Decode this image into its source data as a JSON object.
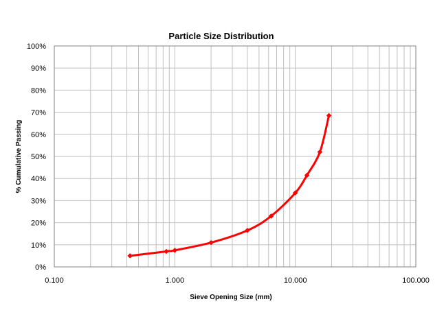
{
  "chart_data": {
    "type": "line",
    "title": "Particle Size Distribution",
    "xlabel": "Sieve Opening Size (mm)",
    "ylabel": "% Cumulative Passing",
    "x_scale": "log",
    "xlim": [
      0.1,
      100
    ],
    "ylim": [
      0,
      100
    ],
    "x_tick_labels": [
      "0.100",
      "1.000",
      "10.000",
      "100.000"
    ],
    "x_tick_values": [
      0.1,
      1,
      10,
      100
    ],
    "y_tick_labels": [
      "0%",
      "10%",
      "20%",
      "30%",
      "40%",
      "50%",
      "60%",
      "70%",
      "80%",
      "90%",
      "100%"
    ],
    "y_tick_values": [
      0,
      10,
      20,
      30,
      40,
      50,
      60,
      70,
      80,
      90,
      100
    ],
    "grid": true,
    "legend": "none",
    "series": [
      {
        "color": "#ff0000",
        "x": [
          0.425,
          0.85,
          1.0,
          2.0,
          4.0,
          6.3,
          10.0,
          12.5,
          16.0,
          19.0
        ],
        "y": [
          5.0,
          7.0,
          7.5,
          11.0,
          16.5,
          23.0,
          33.5,
          41.5,
          52.0,
          68.5
        ]
      }
    ]
  }
}
